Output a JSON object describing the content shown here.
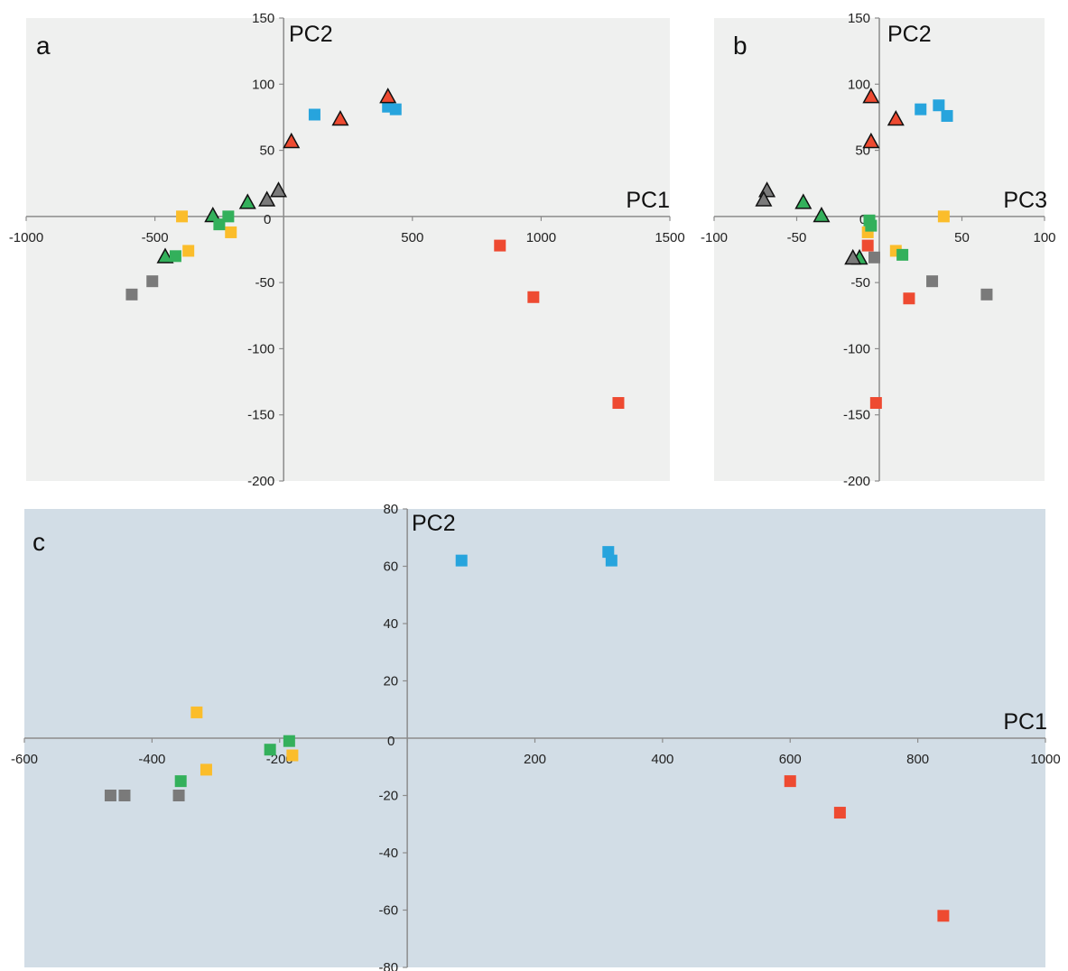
{
  "colors": {
    "blue": "#27a4dd",
    "red": "#ee4a31",
    "gray": "#7a7a7a",
    "green": "#33b05b",
    "yellow": "#fbbd2b",
    "panel_ab_background": "#eff0ef",
    "panel_c_background": "#d2dde6"
  },
  "chart_data": [
    {
      "type": "scatter",
      "panel_label": "a",
      "xlabel": "PC1",
      "ylabel": "PC2",
      "xlim": [
        -1000,
        1500
      ],
      "ylim": [
        -200,
        150
      ],
      "x_ticks": [
        "-1000",
        "-500",
        "0",
        "500",
        "1000",
        "1500"
      ],
      "y_ticks": [
        "150",
        "100",
        "50",
        "0",
        "-50",
        "-100",
        "-150",
        "-200"
      ],
      "grid": false,
      "points": [
        {
          "x": 120,
          "y": 77,
          "color": "blue",
          "marker": "square"
        },
        {
          "x": 405,
          "y": 83,
          "color": "blue",
          "marker": "square"
        },
        {
          "x": 435,
          "y": 81,
          "color": "blue",
          "marker": "square"
        },
        {
          "x": 30,
          "y": 56,
          "color": "red",
          "marker": "triangle"
        },
        {
          "x": 220,
          "y": 73,
          "color": "red",
          "marker": "triangle"
        },
        {
          "x": 405,
          "y": 90,
          "color": "red",
          "marker": "triangle"
        },
        {
          "x": -20,
          "y": 19,
          "color": "gray",
          "marker": "triangle"
        },
        {
          "x": -65,
          "y": 12,
          "color": "gray",
          "marker": "triangle"
        },
        {
          "x": -140,
          "y": 10,
          "color": "green",
          "marker": "triangle"
        },
        {
          "x": -275,
          "y": 0,
          "color": "green",
          "marker": "triangle"
        },
        {
          "x": -460,
          "y": -31,
          "color": "green",
          "marker": "triangle"
        },
        {
          "x": -395,
          "y": 0,
          "color": "yellow",
          "marker": "square"
        },
        {
          "x": -370,
          "y": -26,
          "color": "yellow",
          "marker": "square"
        },
        {
          "x": -205,
          "y": -12,
          "color": "yellow",
          "marker": "square"
        },
        {
          "x": -215,
          "y": 0,
          "color": "green",
          "marker": "square"
        },
        {
          "x": -250,
          "y": -6,
          "color": "green",
          "marker": "square"
        },
        {
          "x": -420,
          "y": -30,
          "color": "green",
          "marker": "square"
        },
        {
          "x": -510,
          "y": -49,
          "color": "gray",
          "marker": "square"
        },
        {
          "x": -590,
          "y": -59,
          "color": "gray",
          "marker": "square"
        },
        {
          "x": 840,
          "y": -22,
          "color": "red",
          "marker": "square"
        },
        {
          "x": 970,
          "y": -61,
          "color": "red",
          "marker": "square"
        },
        {
          "x": 1300,
          "y": -141,
          "color": "red",
          "marker": "square"
        }
      ]
    },
    {
      "type": "scatter",
      "panel_label": "b",
      "xlabel": "PC3",
      "ylabel": "PC2",
      "xlim": [
        -100,
        100
      ],
      "ylim": [
        -200,
        150
      ],
      "x_ticks": [
        "-100",
        "-50",
        "0",
        "50",
        "100"
      ],
      "y_ticks": [
        "150",
        "100",
        "50",
        "0",
        "-50",
        "-100",
        "-150",
        "-200"
      ],
      "grid": false,
      "points": [
        {
          "x": 25,
          "y": 81,
          "color": "blue",
          "marker": "square"
        },
        {
          "x": 36,
          "y": 84,
          "color": "blue",
          "marker": "square"
        },
        {
          "x": 41,
          "y": 76,
          "color": "blue",
          "marker": "square"
        },
        {
          "x": -5,
          "y": 90,
          "color": "red",
          "marker": "triangle"
        },
        {
          "x": 10,
          "y": 73,
          "color": "red",
          "marker": "triangle"
        },
        {
          "x": -5,
          "y": 56,
          "color": "red",
          "marker": "triangle"
        },
        {
          "x": -68,
          "y": 19,
          "color": "gray",
          "marker": "triangle"
        },
        {
          "x": -70,
          "y": 12,
          "color": "gray",
          "marker": "triangle"
        },
        {
          "x": -46,
          "y": 10,
          "color": "green",
          "marker": "triangle"
        },
        {
          "x": -35,
          "y": 0,
          "color": "green",
          "marker": "triangle"
        },
        {
          "x": -12,
          "y": -32,
          "color": "green",
          "marker": "triangle"
        },
        {
          "x": -16,
          "y": -32,
          "color": "gray",
          "marker": "triangle"
        },
        {
          "x": 39,
          "y": 0,
          "color": "yellow",
          "marker": "square"
        },
        {
          "x": -7,
          "y": -12,
          "color": "yellow",
          "marker": "square"
        },
        {
          "x": 10,
          "y": -26,
          "color": "yellow",
          "marker": "square"
        },
        {
          "x": -6,
          "y": -3,
          "color": "green",
          "marker": "square"
        },
        {
          "x": -5,
          "y": -7,
          "color": "green",
          "marker": "square"
        },
        {
          "x": 14,
          "y": -29,
          "color": "green",
          "marker": "square"
        },
        {
          "x": -3,
          "y": -31,
          "color": "gray",
          "marker": "square"
        },
        {
          "x": 32,
          "y": -49,
          "color": "gray",
          "marker": "square"
        },
        {
          "x": 65,
          "y": -59,
          "color": "gray",
          "marker": "square"
        },
        {
          "x": -7,
          "y": -22,
          "color": "red",
          "marker": "square"
        },
        {
          "x": 18,
          "y": -62,
          "color": "red",
          "marker": "square"
        },
        {
          "x": -2,
          "y": -141,
          "color": "red",
          "marker": "square"
        }
      ]
    },
    {
      "type": "scatter",
      "panel_label": "c",
      "xlabel": "PC1",
      "ylabel": "PC2",
      "xlim": [
        -600,
        1000
      ],
      "ylim": [
        -80,
        80
      ],
      "x_ticks": [
        "-600",
        "-400",
        "-200",
        "0",
        "200",
        "400",
        "600",
        "800",
        "1000"
      ],
      "y_ticks": [
        "80",
        "60",
        "40",
        "20",
        "0",
        "-20",
        "-40",
        "-60",
        "-80"
      ],
      "grid": false,
      "points": [
        {
          "x": 85,
          "y": 62,
          "color": "blue",
          "marker": "square"
        },
        {
          "x": 315,
          "y": 65,
          "color": "blue",
          "marker": "square"
        },
        {
          "x": 320,
          "y": 62,
          "color": "blue",
          "marker": "square"
        },
        {
          "x": -330,
          "y": 9,
          "color": "yellow",
          "marker": "square"
        },
        {
          "x": -315,
          "y": -11,
          "color": "yellow",
          "marker": "square"
        },
        {
          "x": -180,
          "y": -6,
          "color": "yellow",
          "marker": "square"
        },
        {
          "x": -185,
          "y": -1,
          "color": "green",
          "marker": "square"
        },
        {
          "x": -215,
          "y": -4,
          "color": "green",
          "marker": "square"
        },
        {
          "x": -355,
          "y": -15,
          "color": "green",
          "marker": "square"
        },
        {
          "x": -465,
          "y": -20,
          "color": "gray",
          "marker": "square"
        },
        {
          "x": -443,
          "y": -20,
          "color": "gray",
          "marker": "square"
        },
        {
          "x": -358,
          "y": -20,
          "color": "gray",
          "marker": "square"
        },
        {
          "x": 600,
          "y": -15,
          "color": "red",
          "marker": "square"
        },
        {
          "x": 678,
          "y": -26,
          "color": "red",
          "marker": "square"
        },
        {
          "x": 840,
          "y": -62,
          "color": "red",
          "marker": "square"
        }
      ]
    }
  ]
}
